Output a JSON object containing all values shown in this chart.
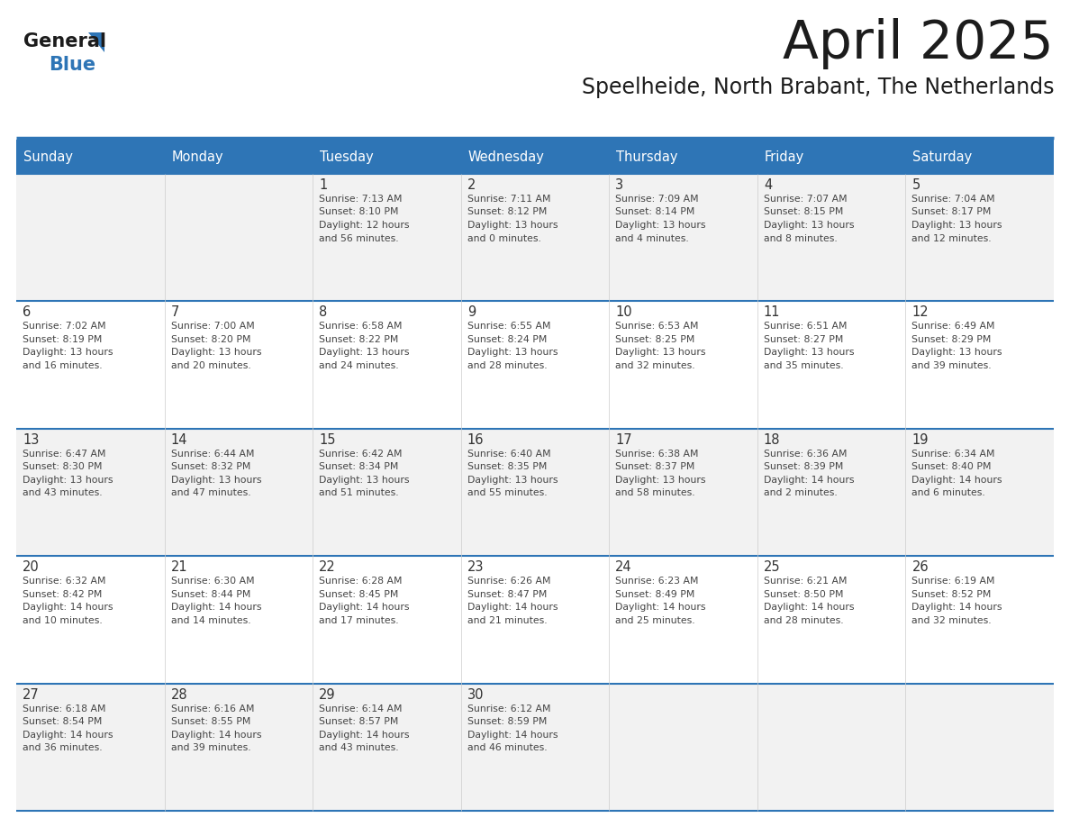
{
  "title": "April 2025",
  "subtitle": "Speelheide, North Brabant, The Netherlands",
  "header_bg_color": "#2E75B6",
  "header_text_color": "#FFFFFF",
  "cell_bg_colors": [
    "#F2F2F2",
    "#FFFFFF"
  ],
  "day_number_color": "#333333",
  "cell_text_color": "#444444",
  "border_color": "#2E75B6",
  "days_of_week": [
    "Sunday",
    "Monday",
    "Tuesday",
    "Wednesday",
    "Thursday",
    "Friday",
    "Saturday"
  ],
  "calendar_data": [
    [
      {
        "day": "",
        "lines": []
      },
      {
        "day": "",
        "lines": []
      },
      {
        "day": "1",
        "lines": [
          "Sunrise: 7:13 AM",
          "Sunset: 8:10 PM",
          "Daylight: 12 hours",
          "and 56 minutes."
        ]
      },
      {
        "day": "2",
        "lines": [
          "Sunrise: 7:11 AM",
          "Sunset: 8:12 PM",
          "Daylight: 13 hours",
          "and 0 minutes."
        ]
      },
      {
        "day": "3",
        "lines": [
          "Sunrise: 7:09 AM",
          "Sunset: 8:14 PM",
          "Daylight: 13 hours",
          "and 4 minutes."
        ]
      },
      {
        "day": "4",
        "lines": [
          "Sunrise: 7:07 AM",
          "Sunset: 8:15 PM",
          "Daylight: 13 hours",
          "and 8 minutes."
        ]
      },
      {
        "day": "5",
        "lines": [
          "Sunrise: 7:04 AM",
          "Sunset: 8:17 PM",
          "Daylight: 13 hours",
          "and 12 minutes."
        ]
      }
    ],
    [
      {
        "day": "6",
        "lines": [
          "Sunrise: 7:02 AM",
          "Sunset: 8:19 PM",
          "Daylight: 13 hours",
          "and 16 minutes."
        ]
      },
      {
        "day": "7",
        "lines": [
          "Sunrise: 7:00 AM",
          "Sunset: 8:20 PM",
          "Daylight: 13 hours",
          "and 20 minutes."
        ]
      },
      {
        "day": "8",
        "lines": [
          "Sunrise: 6:58 AM",
          "Sunset: 8:22 PM",
          "Daylight: 13 hours",
          "and 24 minutes."
        ]
      },
      {
        "day": "9",
        "lines": [
          "Sunrise: 6:55 AM",
          "Sunset: 8:24 PM",
          "Daylight: 13 hours",
          "and 28 minutes."
        ]
      },
      {
        "day": "10",
        "lines": [
          "Sunrise: 6:53 AM",
          "Sunset: 8:25 PM",
          "Daylight: 13 hours",
          "and 32 minutes."
        ]
      },
      {
        "day": "11",
        "lines": [
          "Sunrise: 6:51 AM",
          "Sunset: 8:27 PM",
          "Daylight: 13 hours",
          "and 35 minutes."
        ]
      },
      {
        "day": "12",
        "lines": [
          "Sunrise: 6:49 AM",
          "Sunset: 8:29 PM",
          "Daylight: 13 hours",
          "and 39 minutes."
        ]
      }
    ],
    [
      {
        "day": "13",
        "lines": [
          "Sunrise: 6:47 AM",
          "Sunset: 8:30 PM",
          "Daylight: 13 hours",
          "and 43 minutes."
        ]
      },
      {
        "day": "14",
        "lines": [
          "Sunrise: 6:44 AM",
          "Sunset: 8:32 PM",
          "Daylight: 13 hours",
          "and 47 minutes."
        ]
      },
      {
        "day": "15",
        "lines": [
          "Sunrise: 6:42 AM",
          "Sunset: 8:34 PM",
          "Daylight: 13 hours",
          "and 51 minutes."
        ]
      },
      {
        "day": "16",
        "lines": [
          "Sunrise: 6:40 AM",
          "Sunset: 8:35 PM",
          "Daylight: 13 hours",
          "and 55 minutes."
        ]
      },
      {
        "day": "17",
        "lines": [
          "Sunrise: 6:38 AM",
          "Sunset: 8:37 PM",
          "Daylight: 13 hours",
          "and 58 minutes."
        ]
      },
      {
        "day": "18",
        "lines": [
          "Sunrise: 6:36 AM",
          "Sunset: 8:39 PM",
          "Daylight: 14 hours",
          "and 2 minutes."
        ]
      },
      {
        "day": "19",
        "lines": [
          "Sunrise: 6:34 AM",
          "Sunset: 8:40 PM",
          "Daylight: 14 hours",
          "and 6 minutes."
        ]
      }
    ],
    [
      {
        "day": "20",
        "lines": [
          "Sunrise: 6:32 AM",
          "Sunset: 8:42 PM",
          "Daylight: 14 hours",
          "and 10 minutes."
        ]
      },
      {
        "day": "21",
        "lines": [
          "Sunrise: 6:30 AM",
          "Sunset: 8:44 PM",
          "Daylight: 14 hours",
          "and 14 minutes."
        ]
      },
      {
        "day": "22",
        "lines": [
          "Sunrise: 6:28 AM",
          "Sunset: 8:45 PM",
          "Daylight: 14 hours",
          "and 17 minutes."
        ]
      },
      {
        "day": "23",
        "lines": [
          "Sunrise: 6:26 AM",
          "Sunset: 8:47 PM",
          "Daylight: 14 hours",
          "and 21 minutes."
        ]
      },
      {
        "day": "24",
        "lines": [
          "Sunrise: 6:23 AM",
          "Sunset: 8:49 PM",
          "Daylight: 14 hours",
          "and 25 minutes."
        ]
      },
      {
        "day": "25",
        "lines": [
          "Sunrise: 6:21 AM",
          "Sunset: 8:50 PM",
          "Daylight: 14 hours",
          "and 28 minutes."
        ]
      },
      {
        "day": "26",
        "lines": [
          "Sunrise: 6:19 AM",
          "Sunset: 8:52 PM",
          "Daylight: 14 hours",
          "and 32 minutes."
        ]
      }
    ],
    [
      {
        "day": "27",
        "lines": [
          "Sunrise: 6:18 AM",
          "Sunset: 8:54 PM",
          "Daylight: 14 hours",
          "and 36 minutes."
        ]
      },
      {
        "day": "28",
        "lines": [
          "Sunrise: 6:16 AM",
          "Sunset: 8:55 PM",
          "Daylight: 14 hours",
          "and 39 minutes."
        ]
      },
      {
        "day": "29",
        "lines": [
          "Sunrise: 6:14 AM",
          "Sunset: 8:57 PM",
          "Daylight: 14 hours",
          "and 43 minutes."
        ]
      },
      {
        "day": "30",
        "lines": [
          "Sunrise: 6:12 AM",
          "Sunset: 8:59 PM",
          "Daylight: 14 hours",
          "and 46 minutes."
        ]
      },
      {
        "day": "",
        "lines": []
      },
      {
        "day": "",
        "lines": []
      },
      {
        "day": "",
        "lines": []
      }
    ]
  ]
}
